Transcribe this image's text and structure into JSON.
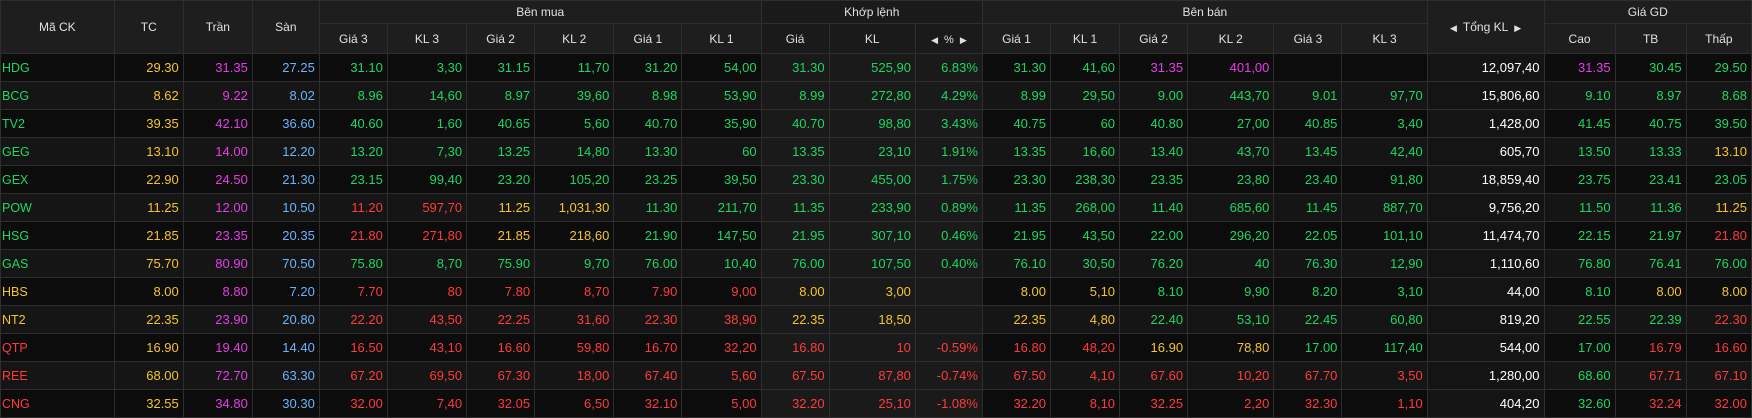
{
  "colors": {
    "up": "#1ed760",
    "down": "#ff3b3b",
    "ref": "#f4c430",
    "ceil": "#e53de8",
    "floor": "#6ab4ff",
    "text": "#ffffff"
  },
  "header": {
    "symbol": "Mã CK",
    "ref": "TC",
    "ceil": "Trần",
    "floor": "Sàn",
    "buy_group": "Bên mua",
    "match_group": "Khớp lệnh",
    "sell_group": "Bên bán",
    "total_vol": "Tổng KL",
    "trade_price_group": "Giá GD",
    "buy": [
      "Giá 3",
      "KL 3",
      "Giá 2",
      "KL 2",
      "Giá 1",
      "KL 1"
    ],
    "match": [
      "Giá",
      "KL",
      "%"
    ],
    "sell": [
      "Giá 1",
      "KL 1",
      "Giá 2",
      "KL 2",
      "Giá 3",
      "KL 3"
    ],
    "trade": [
      "Cao",
      "TB",
      "Thấp"
    ]
  },
  "rows": [
    {
      "sym": "HDG",
      "sc": "up",
      "tc": "29.30",
      "tr": "31.35",
      "sa": "27.25",
      "b": [
        {
          "v": "31.10",
          "c": "up"
        },
        {
          "v": "3,30",
          "c": "up"
        },
        {
          "v": "31.15",
          "c": "up"
        },
        {
          "v": "11,70",
          "c": "up"
        },
        {
          "v": "31.20",
          "c": "up"
        },
        {
          "v": "54,00",
          "c": "up"
        }
      ],
      "m": [
        {
          "v": "31.30",
          "c": "up"
        },
        {
          "v": "525,90",
          "c": "up"
        },
        {
          "v": "6.83%",
          "c": "up"
        }
      ],
      "s": [
        {
          "v": "31.30",
          "c": "up"
        },
        {
          "v": "41,60",
          "c": "up"
        },
        {
          "v": "31.35",
          "c": "ceil"
        },
        {
          "v": "401,00",
          "c": "ceil"
        },
        {
          "v": "",
          "c": "up"
        },
        {
          "v": "",
          "c": "up"
        }
      ],
      "tot": "12,097,40",
      "g": [
        {
          "v": "31.35",
          "c": "ceil"
        },
        {
          "v": "30.45",
          "c": "up"
        },
        {
          "v": "29.50",
          "c": "up"
        }
      ]
    },
    {
      "sym": "BCG",
      "sc": "up",
      "tc": "8.62",
      "tr": "9.22",
      "sa": "8.02",
      "b": [
        {
          "v": "8.96",
          "c": "up"
        },
        {
          "v": "14,60",
          "c": "up"
        },
        {
          "v": "8.97",
          "c": "up"
        },
        {
          "v": "39,60",
          "c": "up"
        },
        {
          "v": "8.98",
          "c": "up"
        },
        {
          "v": "53,90",
          "c": "up"
        }
      ],
      "m": [
        {
          "v": "8.99",
          "c": "up"
        },
        {
          "v": "272,80",
          "c": "up"
        },
        {
          "v": "4.29%",
          "c": "up"
        }
      ],
      "s": [
        {
          "v": "8.99",
          "c": "up"
        },
        {
          "v": "29,50",
          "c": "up"
        },
        {
          "v": "9.00",
          "c": "up"
        },
        {
          "v": "443,70",
          "c": "up"
        },
        {
          "v": "9.01",
          "c": "up"
        },
        {
          "v": "97,70",
          "c": "up"
        }
      ],
      "tot": "15,806,60",
      "g": [
        {
          "v": "9.10",
          "c": "up"
        },
        {
          "v": "8.97",
          "c": "up"
        },
        {
          "v": "8.68",
          "c": "up"
        }
      ]
    },
    {
      "sym": "TV2",
      "sc": "up",
      "tc": "39.35",
      "tr": "42.10",
      "sa": "36.60",
      "b": [
        {
          "v": "40.60",
          "c": "up"
        },
        {
          "v": "1,60",
          "c": "up"
        },
        {
          "v": "40.65",
          "c": "up"
        },
        {
          "v": "5,60",
          "c": "up"
        },
        {
          "v": "40.70",
          "c": "up"
        },
        {
          "v": "35,90",
          "c": "up"
        }
      ],
      "m": [
        {
          "v": "40.70",
          "c": "up"
        },
        {
          "v": "98,80",
          "c": "up"
        },
        {
          "v": "3.43%",
          "c": "up"
        }
      ],
      "s": [
        {
          "v": "40.75",
          "c": "up"
        },
        {
          "v": "60",
          "c": "up"
        },
        {
          "v": "40.80",
          "c": "up"
        },
        {
          "v": "27,00",
          "c": "up"
        },
        {
          "v": "40.85",
          "c": "up"
        },
        {
          "v": "3,40",
          "c": "up"
        }
      ],
      "tot": "1,428,00",
      "g": [
        {
          "v": "41.45",
          "c": "up"
        },
        {
          "v": "40.75",
          "c": "up"
        },
        {
          "v": "39.50",
          "c": "up"
        }
      ]
    },
    {
      "sym": "GEG",
      "sc": "up",
      "tc": "13.10",
      "tr": "14.00",
      "sa": "12.20",
      "b": [
        {
          "v": "13.20",
          "c": "up"
        },
        {
          "v": "7,30",
          "c": "up"
        },
        {
          "v": "13.25",
          "c": "up"
        },
        {
          "v": "14,80",
          "c": "up"
        },
        {
          "v": "13.30",
          "c": "up"
        },
        {
          "v": "60",
          "c": "up"
        }
      ],
      "m": [
        {
          "v": "13.35",
          "c": "up"
        },
        {
          "v": "23,10",
          "c": "up"
        },
        {
          "v": "1.91%",
          "c": "up"
        }
      ],
      "s": [
        {
          "v": "13.35",
          "c": "up"
        },
        {
          "v": "16,60",
          "c": "up"
        },
        {
          "v": "13.40",
          "c": "up"
        },
        {
          "v": "43,70",
          "c": "up"
        },
        {
          "v": "13.45",
          "c": "up"
        },
        {
          "v": "42,40",
          "c": "up"
        }
      ],
      "tot": "605,70",
      "g": [
        {
          "v": "13.50",
          "c": "up"
        },
        {
          "v": "13.33",
          "c": "up"
        },
        {
          "v": "13.10",
          "c": "ref"
        }
      ]
    },
    {
      "sym": "GEX",
      "sc": "up",
      "tc": "22.90",
      "tr": "24.50",
      "sa": "21.30",
      "b": [
        {
          "v": "23.15",
          "c": "up"
        },
        {
          "v": "99,40",
          "c": "up"
        },
        {
          "v": "23.20",
          "c": "up"
        },
        {
          "v": "105,20",
          "c": "up"
        },
        {
          "v": "23.25",
          "c": "up"
        },
        {
          "v": "39,50",
          "c": "up"
        }
      ],
      "m": [
        {
          "v": "23.30",
          "c": "up"
        },
        {
          "v": "455,00",
          "c": "up"
        },
        {
          "v": "1.75%",
          "c": "up"
        }
      ],
      "s": [
        {
          "v": "23.30",
          "c": "up"
        },
        {
          "v": "238,30",
          "c": "up"
        },
        {
          "v": "23.35",
          "c": "up"
        },
        {
          "v": "23,80",
          "c": "up"
        },
        {
          "v": "23.40",
          "c": "up"
        },
        {
          "v": "91,80",
          "c": "up"
        }
      ],
      "tot": "18,859,40",
      "g": [
        {
          "v": "23.75",
          "c": "up"
        },
        {
          "v": "23.41",
          "c": "up"
        },
        {
          "v": "23.05",
          "c": "up"
        }
      ]
    },
    {
      "sym": "POW",
      "sc": "up",
      "tc": "11.25",
      "tr": "12.00",
      "sa": "10.50",
      "b": [
        {
          "v": "11.20",
          "c": "down"
        },
        {
          "v": "597,70",
          "c": "down"
        },
        {
          "v": "11.25",
          "c": "ref"
        },
        {
          "v": "1,031,30",
          "c": "ref"
        },
        {
          "v": "11.30",
          "c": "up"
        },
        {
          "v": "211,70",
          "c": "up"
        }
      ],
      "m": [
        {
          "v": "11.35",
          "c": "up"
        },
        {
          "v": "233,90",
          "c": "up"
        },
        {
          "v": "0.89%",
          "c": "up"
        }
      ],
      "s": [
        {
          "v": "11.35",
          "c": "up"
        },
        {
          "v": "268,00",
          "c": "up"
        },
        {
          "v": "11.40",
          "c": "up"
        },
        {
          "v": "685,60",
          "c": "up"
        },
        {
          "v": "11.45",
          "c": "up"
        },
        {
          "v": "887,70",
          "c": "up"
        }
      ],
      "tot": "9,756,20",
      "g": [
        {
          "v": "11.50",
          "c": "up"
        },
        {
          "v": "11.36",
          "c": "up"
        },
        {
          "v": "11.25",
          "c": "ref"
        }
      ]
    },
    {
      "sym": "HSG",
      "sc": "up",
      "tc": "21.85",
      "tr": "23.35",
      "sa": "20.35",
      "b": [
        {
          "v": "21.80",
          "c": "down"
        },
        {
          "v": "271,80",
          "c": "down"
        },
        {
          "v": "21.85",
          "c": "ref"
        },
        {
          "v": "218,60",
          "c": "ref"
        },
        {
          "v": "21.90",
          "c": "up"
        },
        {
          "v": "147,50",
          "c": "up"
        }
      ],
      "m": [
        {
          "v": "21.95",
          "c": "up"
        },
        {
          "v": "307,10",
          "c": "up"
        },
        {
          "v": "0.46%",
          "c": "up"
        }
      ],
      "s": [
        {
          "v": "21.95",
          "c": "up"
        },
        {
          "v": "43,50",
          "c": "up"
        },
        {
          "v": "22.00",
          "c": "up"
        },
        {
          "v": "296,20",
          "c": "up"
        },
        {
          "v": "22.05",
          "c": "up"
        },
        {
          "v": "101,10",
          "c": "up"
        }
      ],
      "tot": "11,474,70",
      "g": [
        {
          "v": "22.15",
          "c": "up"
        },
        {
          "v": "21.97",
          "c": "up"
        },
        {
          "v": "21.80",
          "c": "down"
        }
      ]
    },
    {
      "sym": "GAS",
      "sc": "up",
      "tc": "75.70",
      "tr": "80.90",
      "sa": "70.50",
      "b": [
        {
          "v": "75.80",
          "c": "up"
        },
        {
          "v": "8,70",
          "c": "up"
        },
        {
          "v": "75.90",
          "c": "up"
        },
        {
          "v": "9,70",
          "c": "up"
        },
        {
          "v": "76.00",
          "c": "up"
        },
        {
          "v": "10,40",
          "c": "up"
        }
      ],
      "m": [
        {
          "v": "76.00",
          "c": "up"
        },
        {
          "v": "107,50",
          "c": "up"
        },
        {
          "v": "0.40%",
          "c": "up"
        }
      ],
      "s": [
        {
          "v": "76.10",
          "c": "up"
        },
        {
          "v": "30,50",
          "c": "up"
        },
        {
          "v": "76.20",
          "c": "up"
        },
        {
          "v": "40",
          "c": "up"
        },
        {
          "v": "76.30",
          "c": "up"
        },
        {
          "v": "12,90",
          "c": "up"
        }
      ],
      "tot": "1,110,60",
      "g": [
        {
          "v": "76.80",
          "c": "up"
        },
        {
          "v": "76.41",
          "c": "up"
        },
        {
          "v": "76.00",
          "c": "up"
        }
      ]
    },
    {
      "sym": "HBS",
      "sc": "ref",
      "tc": "8.00",
      "tr": "8.80",
      "sa": "7.20",
      "b": [
        {
          "v": "7.70",
          "c": "down"
        },
        {
          "v": "80",
          "c": "down"
        },
        {
          "v": "7.80",
          "c": "down"
        },
        {
          "v": "8,70",
          "c": "down"
        },
        {
          "v": "7.90",
          "c": "down"
        },
        {
          "v": "9,00",
          "c": "down"
        }
      ],
      "m": [
        {
          "v": "8.00",
          "c": "ref"
        },
        {
          "v": "3,00",
          "c": "ref"
        },
        {
          "v": "",
          "c": "ref"
        }
      ],
      "s": [
        {
          "v": "8.00",
          "c": "ref"
        },
        {
          "v": "5,10",
          "c": "ref"
        },
        {
          "v": "8.10",
          "c": "up"
        },
        {
          "v": "9,90",
          "c": "up"
        },
        {
          "v": "8.20",
          "c": "up"
        },
        {
          "v": "3,10",
          "c": "up"
        }
      ],
      "tot": "44,00",
      "g": [
        {
          "v": "8.10",
          "c": "up"
        },
        {
          "v": "8.00",
          "c": "ref"
        },
        {
          "v": "8.00",
          "c": "ref"
        }
      ]
    },
    {
      "sym": "NT2",
      "sc": "ref",
      "tc": "22.35",
      "tr": "23.90",
      "sa": "20.80",
      "b": [
        {
          "v": "22.20",
          "c": "down"
        },
        {
          "v": "43,50",
          "c": "down"
        },
        {
          "v": "22.25",
          "c": "down"
        },
        {
          "v": "31,60",
          "c": "down"
        },
        {
          "v": "22.30",
          "c": "down"
        },
        {
          "v": "38,90",
          "c": "down"
        }
      ],
      "m": [
        {
          "v": "22.35",
          "c": "ref"
        },
        {
          "v": "18,50",
          "c": "ref"
        },
        {
          "v": "",
          "c": "ref"
        }
      ],
      "s": [
        {
          "v": "22.35",
          "c": "ref"
        },
        {
          "v": "4,80",
          "c": "ref"
        },
        {
          "v": "22.40",
          "c": "up"
        },
        {
          "v": "53,10",
          "c": "up"
        },
        {
          "v": "22.45",
          "c": "up"
        },
        {
          "v": "60,80",
          "c": "up"
        }
      ],
      "tot": "819,20",
      "g": [
        {
          "v": "22.55",
          "c": "up"
        },
        {
          "v": "22.39",
          "c": "up"
        },
        {
          "v": "22.30",
          "c": "down"
        }
      ]
    },
    {
      "sym": "QTP",
      "sc": "down",
      "tc": "16.90",
      "tr": "19.40",
      "sa": "14.40",
      "b": [
        {
          "v": "16.50",
          "c": "down"
        },
        {
          "v": "43,10",
          "c": "down"
        },
        {
          "v": "16.60",
          "c": "down"
        },
        {
          "v": "59,80",
          "c": "down"
        },
        {
          "v": "16.70",
          "c": "down"
        },
        {
          "v": "32,20",
          "c": "down"
        }
      ],
      "m": [
        {
          "v": "16.80",
          "c": "down"
        },
        {
          "v": "10",
          "c": "down"
        },
        {
          "v": "-0.59%",
          "c": "down"
        }
      ],
      "s": [
        {
          "v": "16.80",
          "c": "down"
        },
        {
          "v": "48,20",
          "c": "down"
        },
        {
          "v": "16.90",
          "c": "ref"
        },
        {
          "v": "78,80",
          "c": "ref"
        },
        {
          "v": "17.00",
          "c": "up"
        },
        {
          "v": "117,40",
          "c": "up"
        }
      ],
      "tot": "544,00",
      "g": [
        {
          "v": "17.00",
          "c": "up"
        },
        {
          "v": "16.79",
          "c": "down"
        },
        {
          "v": "16.60",
          "c": "down"
        }
      ]
    },
    {
      "sym": "REE",
      "sc": "down",
      "tc": "68.00",
      "tr": "72.70",
      "sa": "63.30",
      "b": [
        {
          "v": "67.20",
          "c": "down"
        },
        {
          "v": "69,50",
          "c": "down"
        },
        {
          "v": "67.30",
          "c": "down"
        },
        {
          "v": "18,00",
          "c": "down"
        },
        {
          "v": "67.40",
          "c": "down"
        },
        {
          "v": "5,60",
          "c": "down"
        }
      ],
      "m": [
        {
          "v": "67.50",
          "c": "down"
        },
        {
          "v": "87,80",
          "c": "down"
        },
        {
          "v": "-0.74%",
          "c": "down"
        }
      ],
      "s": [
        {
          "v": "67.50",
          "c": "down"
        },
        {
          "v": "4,10",
          "c": "down"
        },
        {
          "v": "67.60",
          "c": "down"
        },
        {
          "v": "10,20",
          "c": "down"
        },
        {
          "v": "67.70",
          "c": "down"
        },
        {
          "v": "3,50",
          "c": "down"
        }
      ],
      "tot": "1,280,00",
      "g": [
        {
          "v": "68.60",
          "c": "up"
        },
        {
          "v": "67.71",
          "c": "down"
        },
        {
          "v": "67.10",
          "c": "down"
        }
      ]
    },
    {
      "sym": "CNG",
      "sc": "down",
      "tc": "32.55",
      "tr": "34.80",
      "sa": "30.30",
      "b": [
        {
          "v": "32.00",
          "c": "down"
        },
        {
          "v": "7,40",
          "c": "down"
        },
        {
          "v": "32.05",
          "c": "down"
        },
        {
          "v": "6,50",
          "c": "down"
        },
        {
          "v": "32.10",
          "c": "down"
        },
        {
          "v": "5,00",
          "c": "down"
        }
      ],
      "m": [
        {
          "v": "32.20",
          "c": "down"
        },
        {
          "v": "25,10",
          "c": "down"
        },
        {
          "v": "-1.08%",
          "c": "down"
        }
      ],
      "s": [
        {
          "v": "32.20",
          "c": "down"
        },
        {
          "v": "8,10",
          "c": "down"
        },
        {
          "v": "32.25",
          "c": "down"
        },
        {
          "v": "2,20",
          "c": "down"
        },
        {
          "v": "32.30",
          "c": "down"
        },
        {
          "v": "1,10",
          "c": "down"
        }
      ],
      "tot": "404,20",
      "g": [
        {
          "v": "32.60",
          "c": "up"
        },
        {
          "v": "32.24",
          "c": "down"
        },
        {
          "v": "32.00",
          "c": "down"
        }
      ]
    }
  ]
}
